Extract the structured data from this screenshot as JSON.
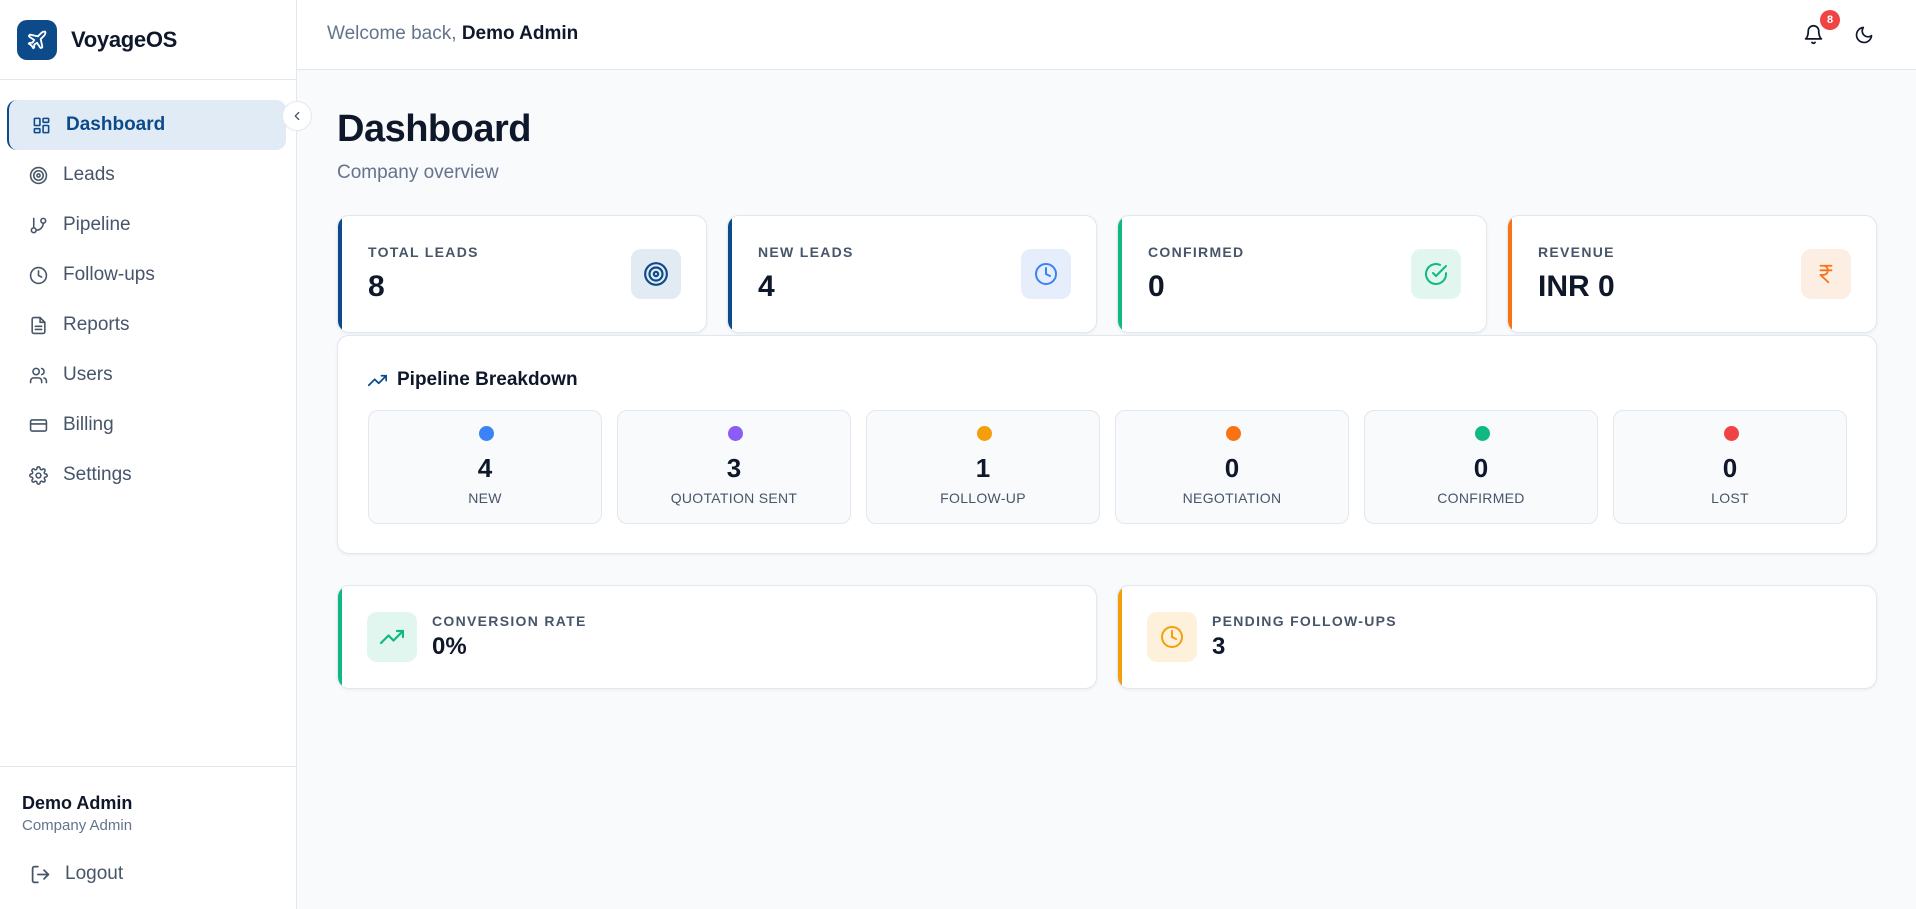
{
  "app": {
    "name": "VoyageOS"
  },
  "sidebar": {
    "items": [
      {
        "label": "Dashboard",
        "icon": "dashboard-icon"
      },
      {
        "label": "Leads",
        "icon": "target-icon"
      },
      {
        "label": "Pipeline",
        "icon": "git-branch-icon"
      },
      {
        "label": "Follow-ups",
        "icon": "clock-icon"
      },
      {
        "label": "Reports",
        "icon": "document-icon"
      },
      {
        "label": "Users",
        "icon": "users-icon"
      },
      {
        "label": "Billing",
        "icon": "credit-card-icon"
      },
      {
        "label": "Settings",
        "icon": "gear-icon"
      }
    ],
    "active": "Dashboard",
    "user": {
      "name": "Demo Admin",
      "role": "Company Admin"
    },
    "logout_label": "Logout"
  },
  "header": {
    "welcome_prefix": "Welcome back,",
    "user_name": "Demo Admin",
    "notification_count": "8"
  },
  "page": {
    "title": "Dashboard",
    "subtitle": "Company overview"
  },
  "stats": [
    {
      "label": "TOTAL LEADS",
      "value": "8",
      "color": "#0c4a8a",
      "icon": "target-icon"
    },
    {
      "label": "NEW LEADS",
      "value": "4",
      "color": "#0c4a8a",
      "icon": "clock-icon"
    },
    {
      "label": "CONFIRMED",
      "value": "0",
      "color": "#10b981",
      "icon": "check-circle-icon"
    },
    {
      "label": "REVENUE",
      "value": "INR 0",
      "color": "#f97316",
      "icon": "rupee-icon"
    }
  ],
  "pipeline": {
    "title": "Pipeline Breakdown",
    "stages": [
      {
        "name": "NEW",
        "count": "4",
        "color": "#3b82f6"
      },
      {
        "name": "QUOTATION SENT",
        "count": "3",
        "color": "#8b5cf6"
      },
      {
        "name": "FOLLOW-UP",
        "count": "1",
        "color": "#f59e0b"
      },
      {
        "name": "NEGOTIATION",
        "count": "0",
        "color": "#f97316"
      },
      {
        "name": "CONFIRMED",
        "count": "0",
        "color": "#10b981"
      },
      {
        "name": "LOST",
        "count": "0",
        "color": "#ef4444"
      }
    ]
  },
  "metrics": [
    {
      "label": "CONVERSION RATE",
      "value": "0%",
      "color": "#10b981",
      "icon": "trending-up-icon"
    },
    {
      "label": "PENDING FOLLOW-UPS",
      "value": "3",
      "color": "#f59e0b",
      "icon": "clock-icon"
    }
  ]
}
